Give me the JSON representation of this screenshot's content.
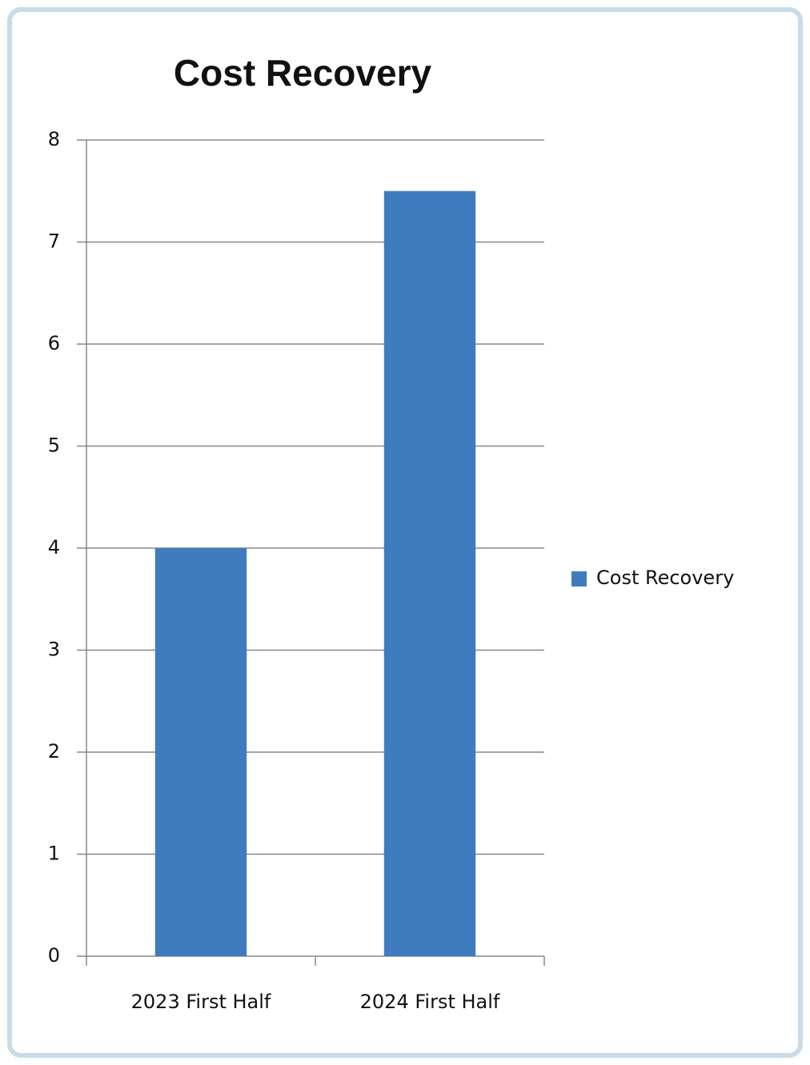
{
  "chart_data": {
    "type": "bar",
    "title": "Cost Recovery",
    "categories": [
      "2023 First Half",
      "2024 First Half"
    ],
    "series": [
      {
        "name": "Cost Recovery",
        "color": "#3f7cbf",
        "values": [
          4,
          7.5
        ]
      }
    ],
    "ylim": [
      0,
      8
    ],
    "yticks": [
      0,
      1,
      2,
      3,
      4,
      5,
      6,
      7,
      8
    ],
    "grid": true,
    "legend": "right"
  }
}
